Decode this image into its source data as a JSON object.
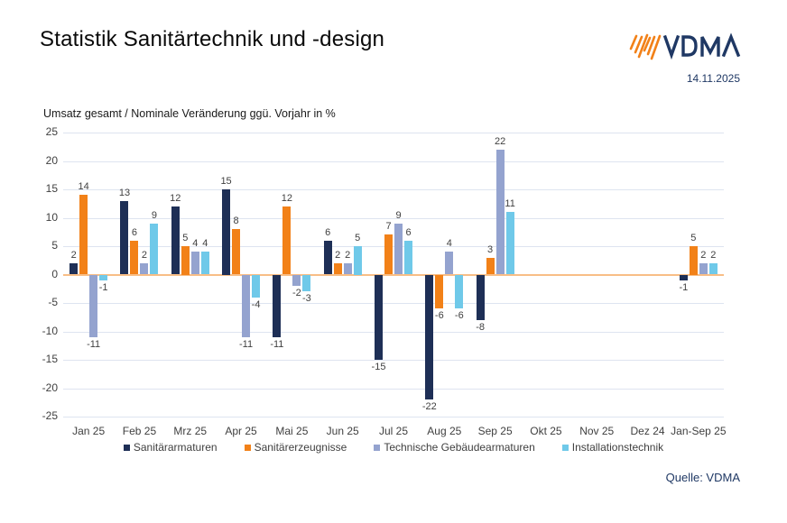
{
  "header": {
    "title": "Statistik Sanitärtechnik und -design",
    "logo_text": "VDMA",
    "date": "14.11.2025"
  },
  "chart_data": {
    "type": "bar",
    "title": "Umsatz gesamt / Nominale Veränderung ggü. Vorjahr in %",
    "categories": [
      "Jan 25",
      "Feb 25",
      "Mrz 25",
      "Apr 25",
      "Mai 25",
      "Jun 25",
      "Jul 25",
      "Aug 25",
      "Sep 25",
      "Okt 25",
      "Nov 25",
      "Dez 24",
      "Jan-Sep 25"
    ],
    "series": [
      {
        "name": "Sanitärarmaturen",
        "color": "#1E2F56",
        "values": [
          2,
          13,
          12,
          15,
          -11,
          6,
          -15,
          -22,
          -8,
          null,
          null,
          null,
          -1
        ]
      },
      {
        "name": "Sanitärerzeugnisse",
        "color": "#F28118",
        "values": [
          14,
          6,
          5,
          8,
          12,
          2,
          7,
          -6,
          3,
          null,
          null,
          null,
          5
        ]
      },
      {
        "name": "Technische Gebäudearmaturen",
        "color": "#94A3CF",
        "values": [
          -11,
          2,
          4,
          -11,
          -2,
          2,
          9,
          4,
          22,
          null,
          null,
          null,
          2
        ]
      },
      {
        "name": "Installationstechnik",
        "color": "#6FC9E9",
        "values": [
          -1,
          9,
          4,
          -4,
          -3,
          5,
          6,
          -6,
          11,
          null,
          null,
          null,
          2
        ]
      }
    ],
    "ylim": [
      -25,
      25
    ],
    "ytick_step": 5,
    "grid": true,
    "legend_position": "bottom",
    "gridline_color": "#DEE4F0",
    "zero_line_color": "#F8BE86"
  },
  "footer": {
    "source": "Quelle: VDMA"
  },
  "colors": {
    "brand_navy": "#1F3864",
    "brand_orange": "#F28118"
  }
}
